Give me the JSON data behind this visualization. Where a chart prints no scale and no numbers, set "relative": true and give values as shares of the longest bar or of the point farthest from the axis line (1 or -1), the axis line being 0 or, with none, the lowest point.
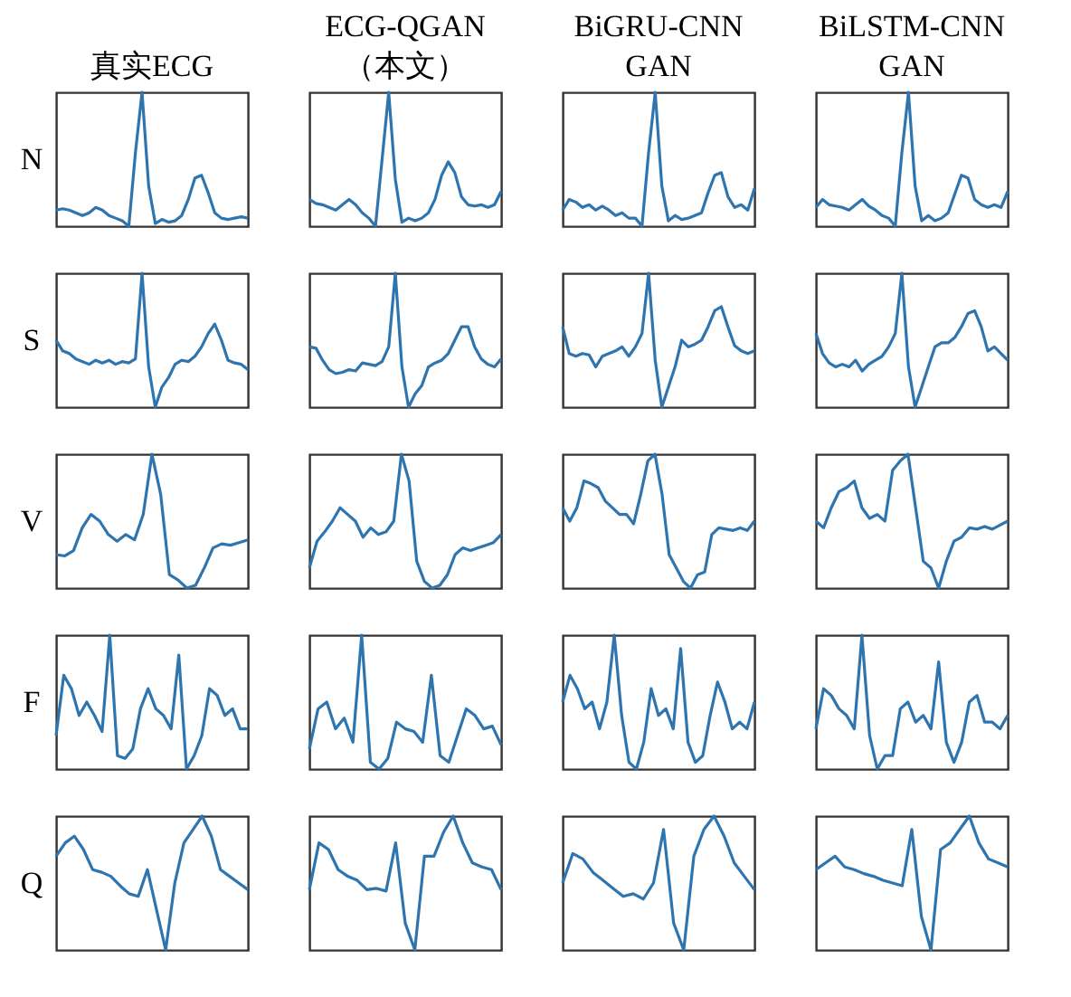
{
  "chart_data": [
    {
      "type": "line",
      "relative": true,
      "title": "真实ECG",
      "ylabel": "N",
      "color": "#2e75b0",
      "categories": [
        null,
        null,
        null,
        null,
        null,
        null,
        null,
        null,
        null,
        null,
        null,
        null,
        null,
        null,
        null,
        null,
        null,
        null,
        null,
        null,
        null,
        null,
        null,
        null,
        null,
        null,
        null,
        null,
        null,
        null
      ],
      "values": [
        0.12,
        0.13,
        0.12,
        0.1,
        0.08,
        0.1,
        0.14,
        0.12,
        0.08,
        0.06,
        0.04,
        0.0,
        0.55,
        1.0,
        0.3,
        0.02,
        0.05,
        0.03,
        0.04,
        0.08,
        0.2,
        0.36,
        0.38,
        0.25,
        0.1,
        0.06,
        0.05,
        0.06,
        0.07,
        0.06
      ]
    },
    {
      "type": "line",
      "relative": true,
      "title": "ECG-QGAN\n（本文）",
      "color": "#2e75b0",
      "categories": [
        null,
        null,
        null,
        null,
        null,
        null,
        null,
        null,
        null,
        null,
        null,
        null,
        null,
        null,
        null,
        null,
        null,
        null,
        null,
        null,
        null,
        null,
        null,
        null,
        null,
        null,
        null,
        null,
        null,
        null
      ],
      "values": [
        0.2,
        0.17,
        0.16,
        0.14,
        0.12,
        0.16,
        0.2,
        0.16,
        0.1,
        0.06,
        0.0,
        0.5,
        1.0,
        0.35,
        0.03,
        0.06,
        0.04,
        0.06,
        0.1,
        0.2,
        0.38,
        0.48,
        0.4,
        0.22,
        0.16,
        0.15,
        0.16,
        0.14,
        0.16,
        0.26
      ]
    },
    {
      "type": "line",
      "relative": true,
      "title": "BiGRU-CNN\nGAN",
      "color": "#2e75b0",
      "categories": [
        null,
        null,
        null,
        null,
        null,
        null,
        null,
        null,
        null,
        null,
        null,
        null,
        null,
        null,
        null,
        null,
        null,
        null,
        null,
        null,
        null,
        null,
        null,
        null,
        null,
        null,
        null,
        null,
        null,
        null
      ],
      "values": [
        0.12,
        0.2,
        0.18,
        0.14,
        0.16,
        0.12,
        0.15,
        0.12,
        0.08,
        0.1,
        0.06,
        0.06,
        0.0,
        0.55,
        1.0,
        0.3,
        0.04,
        0.08,
        0.05,
        0.06,
        0.08,
        0.1,
        0.25,
        0.38,
        0.4,
        0.22,
        0.14,
        0.16,
        0.12,
        0.28
      ]
    },
    {
      "type": "line",
      "relative": true,
      "title": "BiLSTM-CNN\nGAN",
      "color": "#2e75b0",
      "categories": [
        null,
        null,
        null,
        null,
        null,
        null,
        null,
        null,
        null,
        null,
        null,
        null,
        null,
        null,
        null,
        null,
        null,
        null,
        null,
        null,
        null,
        null,
        null,
        null,
        null,
        null,
        null,
        null,
        null,
        null
      ],
      "values": [
        0.14,
        0.2,
        0.16,
        0.15,
        0.14,
        0.12,
        0.16,
        0.2,
        0.15,
        0.12,
        0.08,
        0.06,
        0.0,
        0.55,
        1.0,
        0.3,
        0.04,
        0.08,
        0.04,
        0.06,
        0.1,
        0.24,
        0.38,
        0.36,
        0.2,
        0.16,
        0.14,
        0.16,
        0.14,
        0.26
      ]
    },
    {
      "type": "line",
      "relative": true,
      "ylabel": "S",
      "color": "#2e75b0",
      "categories": [
        null,
        null,
        null,
        null,
        null,
        null,
        null,
        null,
        null,
        null,
        null,
        null,
        null,
        null,
        null,
        null,
        null,
        null,
        null,
        null,
        null,
        null,
        null,
        null,
        null,
        null,
        null,
        null,
        null,
        null
      ],
      "values": [
        0.5,
        0.42,
        0.4,
        0.36,
        0.34,
        0.32,
        0.35,
        0.33,
        0.35,
        0.32,
        0.34,
        0.33,
        0.36,
        1.0,
        0.3,
        0.0,
        0.15,
        0.22,
        0.32,
        0.35,
        0.34,
        0.38,
        0.45,
        0.55,
        0.62,
        0.5,
        0.35,
        0.33,
        0.32,
        0.28
      ]
    },
    {
      "type": "line",
      "relative": true,
      "color": "#2e75b0",
      "categories": [
        null,
        null,
        null,
        null,
        null,
        null,
        null,
        null,
        null,
        null,
        null,
        null,
        null,
        null,
        null,
        null,
        null,
        null,
        null,
        null,
        null,
        null,
        null,
        null,
        null,
        null,
        null,
        null,
        null,
        null
      ],
      "values": [
        0.45,
        0.44,
        0.35,
        0.28,
        0.25,
        0.26,
        0.28,
        0.27,
        0.33,
        0.32,
        0.31,
        0.34,
        0.45,
        1.0,
        0.3,
        0.0,
        0.1,
        0.16,
        0.3,
        0.33,
        0.35,
        0.4,
        0.5,
        0.6,
        0.6,
        0.45,
        0.36,
        0.32,
        0.3,
        0.36
      ]
    },
    {
      "type": "line",
      "relative": true,
      "color": "#2e75b0",
      "categories": [
        null,
        null,
        null,
        null,
        null,
        null,
        null,
        null,
        null,
        null,
        null,
        null,
        null,
        null,
        null,
        null,
        null,
        null,
        null,
        null,
        null,
        null,
        null,
        null,
        null,
        null,
        null,
        null,
        null,
        null
      ],
      "values": [
        0.6,
        0.4,
        0.38,
        0.4,
        0.39,
        0.3,
        0.38,
        0.4,
        0.42,
        0.45,
        0.38,
        0.45,
        0.55,
        1.0,
        0.35,
        0.0,
        0.15,
        0.3,
        0.5,
        0.45,
        0.47,
        0.5,
        0.6,
        0.72,
        0.75,
        0.6,
        0.46,
        0.42,
        0.4,
        0.42
      ]
    },
    {
      "type": "line",
      "relative": true,
      "color": "#2e75b0",
      "categories": [
        null,
        null,
        null,
        null,
        null,
        null,
        null,
        null,
        null,
        null,
        null,
        null,
        null,
        null,
        null,
        null,
        null,
        null,
        null,
        null,
        null,
        null,
        null,
        null,
        null,
        null,
        null,
        null,
        null,
        null
      ],
      "values": [
        0.55,
        0.4,
        0.33,
        0.3,
        0.32,
        0.3,
        0.35,
        0.27,
        0.32,
        0.35,
        0.38,
        0.45,
        0.55,
        1.0,
        0.3,
        0.0,
        0.15,
        0.3,
        0.45,
        0.48,
        0.48,
        0.52,
        0.6,
        0.7,
        0.72,
        0.6,
        0.42,
        0.45,
        0.4,
        0.35
      ]
    },
    {
      "type": "line",
      "relative": true,
      "ylabel": "V",
      "color": "#2e75b0",
      "categories": [
        null,
        null,
        null,
        null,
        null,
        null,
        null,
        null,
        null,
        null,
        null,
        null,
        null,
        null,
        null,
        null,
        null,
        null,
        null,
        null,
        null,
        null,
        null
      ],
      "values": [
        0.25,
        0.24,
        0.28,
        0.45,
        0.55,
        0.5,
        0.4,
        0.35,
        0.4,
        0.36,
        0.55,
        1.0,
        0.7,
        0.1,
        0.06,
        0.0,
        0.02,
        0.15,
        0.3,
        0.33,
        0.32,
        0.34,
        0.36
      ]
    },
    {
      "type": "line",
      "relative": true,
      "color": "#2e75b0",
      "categories": [
        null,
        null,
        null,
        null,
        null,
        null,
        null,
        null,
        null,
        null,
        null,
        null,
        null,
        null,
        null,
        null,
        null,
        null,
        null,
        null,
        null,
        null,
        null,
        null,
        null,
        null
      ],
      "values": [
        0.15,
        0.35,
        0.42,
        0.5,
        0.6,
        0.55,
        0.5,
        0.38,
        0.45,
        0.4,
        0.42,
        0.5,
        1.0,
        0.8,
        0.2,
        0.05,
        0.0,
        0.02,
        0.1,
        0.25,
        0.3,
        0.28,
        0.3,
        0.32,
        0.34,
        0.4
      ]
    },
    {
      "type": "line",
      "relative": true,
      "color": "#2e75b0",
      "categories": [
        null,
        null,
        null,
        null,
        null,
        null,
        null,
        null,
        null,
        null,
        null,
        null,
        null,
        null,
        null,
        null,
        null,
        null,
        null,
        null,
        null,
        null,
        null,
        null,
        null,
        null,
        null,
        null
      ],
      "values": [
        0.6,
        0.5,
        0.6,
        0.8,
        0.78,
        0.75,
        0.65,
        0.6,
        0.55,
        0.55,
        0.48,
        0.7,
        0.95,
        1.0,
        0.7,
        0.25,
        0.15,
        0.05,
        0.0,
        0.1,
        0.12,
        0.4,
        0.45,
        0.44,
        0.43,
        0.45,
        0.43,
        0.5
      ]
    },
    {
      "type": "line",
      "relative": true,
      "color": "#2e75b0",
      "categories": [
        null,
        null,
        null,
        null,
        null,
        null,
        null,
        null,
        null,
        null,
        null,
        null,
        null,
        null,
        null,
        null,
        null,
        null,
        null,
        null,
        null,
        null,
        null,
        null,
        null,
        null
      ],
      "values": [
        0.5,
        0.45,
        0.6,
        0.72,
        0.75,
        0.8,
        0.6,
        0.52,
        0.55,
        0.5,
        0.88,
        0.95,
        1.0,
        0.6,
        0.2,
        0.15,
        0.0,
        0.2,
        0.35,
        0.38,
        0.45,
        0.44,
        0.46,
        0.44,
        0.47,
        0.5
      ]
    },
    {
      "type": "line",
      "relative": true,
      "ylabel": "F",
      "color": "#2e75b0",
      "categories": [
        null,
        null,
        null,
        null,
        null,
        null,
        null,
        null,
        null,
        null,
        null,
        null,
        null,
        null,
        null,
        null,
        null,
        null,
        null,
        null,
        null,
        null,
        null,
        null,
        null,
        null
      ],
      "values": [
        0.25,
        0.7,
        0.6,
        0.4,
        0.5,
        0.4,
        0.28,
        1.0,
        0.1,
        0.08,
        0.15,
        0.45,
        0.6,
        0.45,
        0.4,
        0.3,
        0.85,
        0.0,
        0.1,
        0.25,
        0.6,
        0.55,
        0.4,
        0.45,
        0.3,
        0.3
      ]
    },
    {
      "type": "line",
      "relative": true,
      "color": "#2e75b0",
      "categories": [
        null,
        null,
        null,
        null,
        null,
        null,
        null,
        null,
        null,
        null,
        null,
        null,
        null,
        null,
        null,
        null,
        null,
        null,
        null,
        null,
        null,
        null,
        null
      ],
      "values": [
        0.15,
        0.45,
        0.5,
        0.3,
        0.38,
        0.2,
        1.0,
        0.05,
        0.0,
        0.08,
        0.35,
        0.3,
        0.28,
        0.2,
        0.7,
        0.1,
        0.05,
        0.25,
        0.45,
        0.4,
        0.3,
        0.32,
        0.18
      ]
    },
    {
      "type": "line",
      "relative": true,
      "color": "#2e75b0",
      "categories": [
        null,
        null,
        null,
        null,
        null,
        null,
        null,
        null,
        null,
        null,
        null,
        null,
        null,
        null,
        null,
        null,
        null,
        null,
        null,
        null,
        null,
        null,
        null,
        null,
        null,
        null,
        null
      ],
      "values": [
        0.5,
        0.7,
        0.6,
        0.45,
        0.5,
        0.3,
        0.5,
        1.0,
        0.4,
        0.05,
        0.0,
        0.2,
        0.6,
        0.4,
        0.45,
        0.3,
        0.9,
        0.2,
        0.05,
        0.1,
        0.4,
        0.65,
        0.5,
        0.3,
        0.35,
        0.3,
        0.5
      ]
    },
    {
      "type": "line",
      "relative": true,
      "color": "#2e75b0",
      "categories": [
        null,
        null,
        null,
        null,
        null,
        null,
        null,
        null,
        null,
        null,
        null,
        null,
        null,
        null,
        null,
        null,
        null,
        null,
        null,
        null,
        null,
        null,
        null,
        null,
        null,
        null
      ],
      "values": [
        0.3,
        0.6,
        0.55,
        0.45,
        0.4,
        0.3,
        1.0,
        0.25,
        0.0,
        0.1,
        0.1,
        0.45,
        0.5,
        0.35,
        0.4,
        0.3,
        0.8,
        0.2,
        0.05,
        0.2,
        0.5,
        0.55,
        0.35,
        0.35,
        0.3,
        0.4
      ]
    },
    {
      "type": "line",
      "relative": true,
      "ylabel": "Q",
      "color": "#2e75b0",
      "categories": [
        null,
        null,
        null,
        null,
        null,
        null,
        null,
        null,
        null,
        null,
        null,
        null,
        null,
        null,
        null,
        null,
        null,
        null,
        null,
        null,
        null,
        null
      ],
      "values": [
        0.7,
        0.8,
        0.85,
        0.75,
        0.6,
        0.58,
        0.55,
        0.48,
        0.42,
        0.4,
        0.6,
        0.3,
        0.0,
        0.5,
        0.8,
        0.9,
        1.0,
        0.85,
        0.6,
        0.55,
        0.5,
        0.45
      ]
    },
    {
      "type": "line",
      "relative": true,
      "color": "#2e75b0",
      "categories": [
        null,
        null,
        null,
        null,
        null,
        null,
        null,
        null,
        null,
        null,
        null,
        null,
        null,
        null,
        null,
        null,
        null,
        null,
        null,
        null,
        null
      ],
      "values": [
        0.45,
        0.8,
        0.75,
        0.6,
        0.55,
        0.52,
        0.45,
        0.46,
        0.44,
        0.8,
        0.2,
        0.0,
        0.7,
        0.7,
        0.88,
        1.0,
        0.8,
        0.65,
        0.62,
        0.6,
        0.45
      ]
    },
    {
      "type": "line",
      "relative": true,
      "color": "#2e75b0",
      "categories": [
        null,
        null,
        null,
        null,
        null,
        null,
        null,
        null,
        null,
        null,
        null,
        null,
        null,
        null,
        null,
        null,
        null,
        null,
        null,
        null
      ],
      "values": [
        0.5,
        0.72,
        0.68,
        0.58,
        0.52,
        0.46,
        0.4,
        0.42,
        0.38,
        0.5,
        0.9,
        0.2,
        0.0,
        0.7,
        0.9,
        1.0,
        0.85,
        0.65,
        0.55,
        0.45
      ]
    },
    {
      "type": "line",
      "relative": true,
      "color": "#2e75b0",
      "categories": [
        null,
        null,
        null,
        null,
        null,
        null,
        null,
        null,
        null,
        null,
        null,
        null,
        null,
        null,
        null,
        null,
        null,
        null,
        null,
        null,
        null
      ],
      "values": [
        0.6,
        0.65,
        0.7,
        0.62,
        0.6,
        0.57,
        0.55,
        0.52,
        0.5,
        0.48,
        0.9,
        0.25,
        0.0,
        0.75,
        0.8,
        0.9,
        1.0,
        0.8,
        0.68,
        0.65,
        0.62
      ]
    }
  ]
}
